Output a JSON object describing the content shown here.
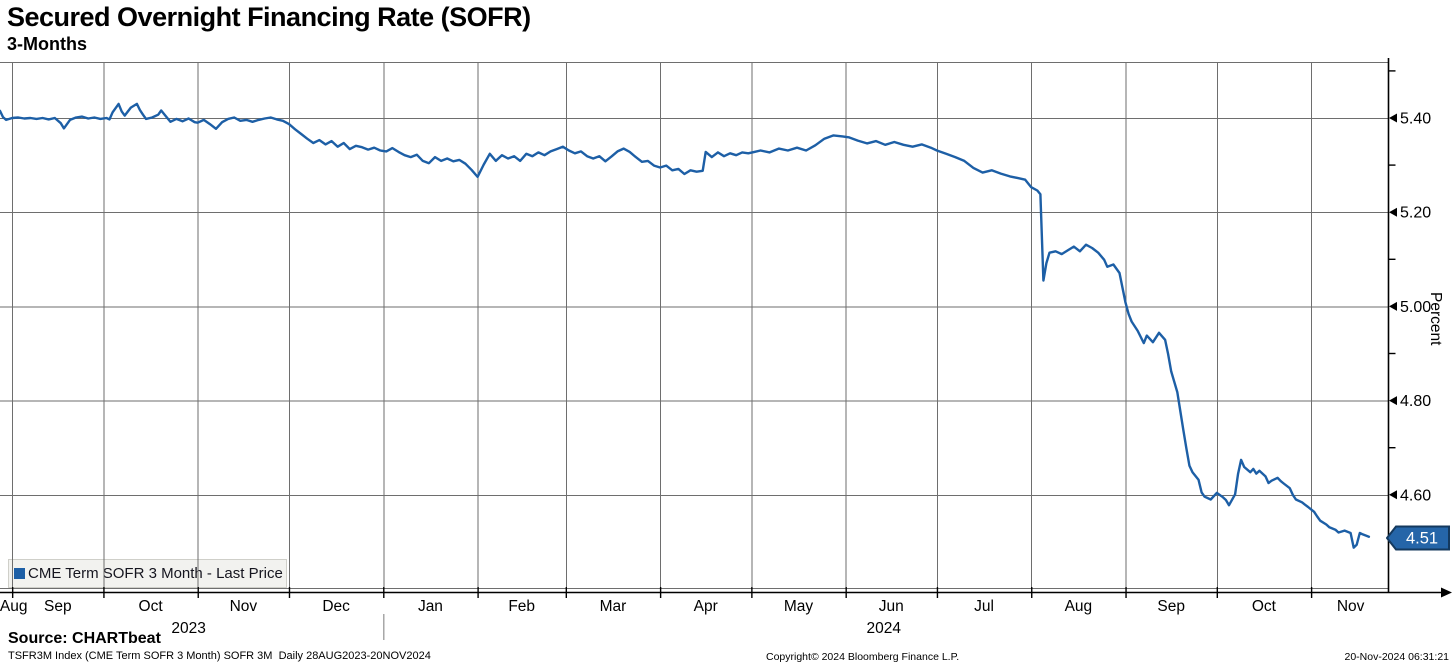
{
  "header": {
    "title": "Secured Overnight Financing Rate (SOFR)",
    "subtitle": "3-Months"
  },
  "legend": {
    "label": "CME Term SOFR 3 Month - Last Price"
  },
  "footer": {
    "source": "Source: CHARTbeat",
    "ticker_line": "TSFR3M Index (CME Term SOFR 3 Month) SOFR 3M  Daily 28AUG2023-20NOV2024",
    "copyright": "Copyright© 2024 Bloomberg Finance L.P.",
    "timestamp": "20-Nov-2024 06:31:21"
  },
  "colors": {
    "line": "#1d5fa6",
    "tag_fill": "#2565a8",
    "tag_border": "#14395e",
    "grid": "#6e6e6e",
    "axis": "#000000",
    "legend_bg": "#f2f2ef"
  },
  "chart_data": {
    "type": "line",
    "title": "Secured Overnight Financing Rate (SOFR) 3-Months",
    "xlabel": "",
    "ylabel": "Percent",
    "x_axis": {
      "start_date": "28AUG2023",
      "end_date": "20NOV2024",
      "month_boundaries_t": [
        4,
        34,
        65,
        95,
        126,
        157,
        186,
        217,
        247,
        278,
        308,
        339,
        370,
        400,
        431
      ],
      "months": [
        {
          "label": "Aug",
          "t_center": 4.5
        },
        {
          "label": "Sep",
          "t_center": 19
        },
        {
          "label": "Oct",
          "t_center": 49.5
        },
        {
          "label": "Nov",
          "t_center": 80
        },
        {
          "label": "Dec",
          "t_center": 110.5
        },
        {
          "label": "Jan",
          "t_center": 141.5
        },
        {
          "label": "Feb",
          "t_center": 171.5
        },
        {
          "label": "Mar",
          "t_center": 201.5
        },
        {
          "label": "Apr",
          "t_center": 232
        },
        {
          "label": "May",
          "t_center": 262.5
        },
        {
          "label": "Jun",
          "t_center": 293
        },
        {
          "label": "Jul",
          "t_center": 323.5
        },
        {
          "label": "Aug",
          "t_center": 354.5
        },
        {
          "label": "Sep",
          "t_center": 385
        },
        {
          "label": "Oct",
          "t_center": 415.5
        },
        {
          "label": "Nov",
          "t_center": 444
        }
      ],
      "years": [
        {
          "label": "2023",
          "t_center": 62
        },
        {
          "label": "2024",
          "t_center": 290.5
        }
      ],
      "year_divider_t": 126
    },
    "y_axis": {
      "label": "Percent",
      "major_ticks": [
        5.4,
        5.2,
        5.0,
        4.8,
        4.6
      ],
      "minor_ticks": [
        5.5,
        5.3,
        5.1,
        4.9,
        4.7,
        4.5
      ],
      "ylim": [
        4.4,
        5.52
      ],
      "grid": true,
      "side": "right"
    },
    "last_price": {
      "label": "4.51",
      "numeric": 4.51
    },
    "series": [
      {
        "name": "CME Term SOFR 3 Month - Last Price",
        "color": "#1d5fa6",
        "points": [
          [
            0,
            5.415
          ],
          [
            1,
            5.402
          ],
          [
            2,
            5.396
          ],
          [
            4,
            5.4
          ],
          [
            6,
            5.401
          ],
          [
            8,
            5.399
          ],
          [
            10,
            5.4
          ],
          [
            12,
            5.398
          ],
          [
            14,
            5.4
          ],
          [
            16,
            5.397
          ],
          [
            18,
            5.4
          ],
          [
            20,
            5.389
          ],
          [
            21,
            5.378
          ],
          [
            23,
            5.396
          ],
          [
            25,
            5.401
          ],
          [
            27,
            5.403
          ],
          [
            29,
            5.399
          ],
          [
            31,
            5.401
          ],
          [
            33,
            5.398
          ],
          [
            35,
            5.4
          ],
          [
            36,
            5.397
          ],
          [
            37,
            5.412
          ],
          [
            39,
            5.43
          ],
          [
            40,
            5.414
          ],
          [
            41,
            5.405
          ],
          [
            43,
            5.422
          ],
          [
            45,
            5.43
          ],
          [
            46,
            5.417
          ],
          [
            47,
            5.407
          ],
          [
            48,
            5.398
          ],
          [
            50,
            5.401
          ],
          [
            52,
            5.407
          ],
          [
            53,
            5.416
          ],
          [
            55,
            5.4
          ],
          [
            56,
            5.392
          ],
          [
            58,
            5.398
          ],
          [
            60,
            5.393
          ],
          [
            62,
            5.399
          ],
          [
            64,
            5.391
          ],
          [
            65,
            5.39
          ],
          [
            67,
            5.396
          ],
          [
            69,
            5.387
          ],
          [
            71,
            5.377
          ],
          [
            73,
            5.391
          ],
          [
            75,
            5.398
          ],
          [
            77,
            5.401
          ],
          [
            79,
            5.394
          ],
          [
            81,
            5.396
          ],
          [
            83,
            5.392
          ],
          [
            85,
            5.396
          ],
          [
            87,
            5.399
          ],
          [
            89,
            5.401
          ],
          [
            91,
            5.397
          ],
          [
            93,
            5.394
          ],
          [
            95,
            5.387
          ],
          [
            97,
            5.376
          ],
          [
            99,
            5.366
          ],
          [
            101,
            5.356
          ],
          [
            103,
            5.347
          ],
          [
            105,
            5.353
          ],
          [
            107,
            5.344
          ],
          [
            109,
            5.351
          ],
          [
            111,
            5.339
          ],
          [
            113,
            5.347
          ],
          [
            115,
            5.334
          ],
          [
            117,
            5.341
          ],
          [
            119,
            5.338
          ],
          [
            121,
            5.333
          ],
          [
            123,
            5.337
          ],
          [
            125,
            5.331
          ],
          [
            127,
            5.329
          ],
          [
            129,
            5.336
          ],
          [
            131,
            5.328
          ],
          [
            133,
            5.321
          ],
          [
            135,
            5.317
          ],
          [
            137,
            5.322
          ],
          [
            139,
            5.309
          ],
          [
            141,
            5.304
          ],
          [
            143,
            5.317
          ],
          [
            145,
            5.309
          ],
          [
            147,
            5.314
          ],
          [
            149,
            5.308
          ],
          [
            151,
            5.311
          ],
          [
            153,
            5.303
          ],
          [
            155,
            5.29
          ],
          [
            157,
            5.275
          ],
          [
            159,
            5.301
          ],
          [
            161,
            5.324
          ],
          [
            163,
            5.309
          ],
          [
            165,
            5.321
          ],
          [
            167,
            5.314
          ],
          [
            169,
            5.319
          ],
          [
            171,
            5.309
          ],
          [
            173,
            5.324
          ],
          [
            175,
            5.319
          ],
          [
            177,
            5.327
          ],
          [
            179,
            5.321
          ],
          [
            181,
            5.329
          ],
          [
            183,
            5.334
          ],
          [
            185,
            5.339
          ],
          [
            187,
            5.331
          ],
          [
            189,
            5.325
          ],
          [
            191,
            5.329
          ],
          [
            193,
            5.319
          ],
          [
            195,
            5.314
          ],
          [
            197,
            5.319
          ],
          [
            199,
            5.308
          ],
          [
            201,
            5.318
          ],
          [
            203,
            5.329
          ],
          [
            205,
            5.335
          ],
          [
            207,
            5.328
          ],
          [
            209,
            5.317
          ],
          [
            211,
            5.307
          ],
          [
            213,
            5.309
          ],
          [
            215,
            5.299
          ],
          [
            217,
            5.295
          ],
          [
            219,
            5.299
          ],
          [
            221,
            5.289
          ],
          [
            223,
            5.292
          ],
          [
            225,
            5.281
          ],
          [
            227,
            5.289
          ],
          [
            229,
            5.286
          ],
          [
            231,
            5.288
          ],
          [
            232,
            5.328
          ],
          [
            234,
            5.317
          ],
          [
            236,
            5.327
          ],
          [
            238,
            5.319
          ],
          [
            240,
            5.325
          ],
          [
            242,
            5.321
          ],
          [
            244,
            5.327
          ],
          [
            246,
            5.325
          ],
          [
            248,
            5.328
          ],
          [
            250,
            5.331
          ],
          [
            253,
            5.327
          ],
          [
            256,
            5.335
          ],
          [
            259,
            5.331
          ],
          [
            262,
            5.337
          ],
          [
            265,
            5.331
          ],
          [
            268,
            5.342
          ],
          [
            271,
            5.356
          ],
          [
            274,
            5.363
          ],
          [
            277,
            5.361
          ],
          [
            279,
            5.359
          ],
          [
            282,
            5.352
          ],
          [
            285,
            5.346
          ],
          [
            288,
            5.351
          ],
          [
            291,
            5.343
          ],
          [
            294,
            5.349
          ],
          [
            297,
            5.343
          ],
          [
            300,
            5.339
          ],
          [
            303,
            5.344
          ],
          [
            306,
            5.337
          ],
          [
            308,
            5.331
          ],
          [
            311,
            5.324
          ],
          [
            314,
            5.317
          ],
          [
            317,
            5.309
          ],
          [
            320,
            5.294
          ],
          [
            323,
            5.284
          ],
          [
            326,
            5.289
          ],
          [
            329,
            5.282
          ],
          [
            332,
            5.276
          ],
          [
            335,
            5.272
          ],
          [
            337,
            5.269
          ],
          [
            339,
            5.253
          ],
          [
            341,
            5.246
          ],
          [
            342,
            5.238
          ],
          [
            343,
            5.055
          ],
          [
            344,
            5.092
          ],
          [
            345,
            5.114
          ],
          [
            347,
            5.117
          ],
          [
            349,
            5.111
          ],
          [
            351,
            5.119
          ],
          [
            353,
            5.127
          ],
          [
            355,
            5.117
          ],
          [
            357,
            5.131
          ],
          [
            359,
            5.124
          ],
          [
            361,
            5.114
          ],
          [
            363,
            5.099
          ],
          [
            364,
            5.084
          ],
          [
            366,
            5.089
          ],
          [
            368,
            5.071
          ],
          [
            370,
            5.008
          ],
          [
            371,
            4.984
          ],
          [
            372,
            4.968
          ],
          [
            374,
            4.948
          ],
          [
            376,
            4.922
          ],
          [
            377,
            4.938
          ],
          [
            379,
            4.924
          ],
          [
            381,
            4.944
          ],
          [
            383,
            4.929
          ],
          [
            384,
            4.899
          ],
          [
            385,
            4.862
          ],
          [
            387,
            4.818
          ],
          [
            388,
            4.778
          ],
          [
            389,
            4.738
          ],
          [
            390,
            4.698
          ],
          [
            391,
            4.662
          ],
          [
            392,
            4.648
          ],
          [
            393,
            4.64
          ],
          [
            394,
            4.632
          ],
          [
            395,
            4.605
          ],
          [
            396,
            4.596
          ],
          [
            398,
            4.59
          ],
          [
            400,
            4.604
          ],
          [
            402,
            4.595
          ],
          [
            403,
            4.589
          ],
          [
            404,
            4.578
          ],
          [
            406,
            4.601
          ],
          [
            407,
            4.645
          ],
          [
            408,
            4.674
          ],
          [
            409,
            4.659
          ],
          [
            411,
            4.648
          ],
          [
            412,
            4.655
          ],
          [
            413,
            4.645
          ],
          [
            414,
            4.651
          ],
          [
            416,
            4.639
          ],
          [
            417,
            4.625
          ],
          [
            418,
            4.63
          ],
          [
            420,
            4.636
          ],
          [
            421,
            4.629
          ],
          [
            422,
            4.624
          ],
          [
            424,
            4.614
          ],
          [
            425,
            4.6
          ],
          [
            426,
            4.59
          ],
          [
            428,
            4.584
          ],
          [
            429,
            4.579
          ],
          [
            430,
            4.574
          ],
          [
            432,
            4.564
          ],
          [
            433,
            4.554
          ],
          [
            434,
            4.545
          ],
          [
            436,
            4.537
          ],
          [
            437,
            4.531
          ],
          [
            439,
            4.526
          ],
          [
            440,
            4.52
          ],
          [
            442,
            4.524
          ],
          [
            444,
            4.519
          ],
          [
            445,
            4.488
          ],
          [
            446,
            4.494
          ],
          [
            447,
            4.519
          ],
          [
            448,
            4.516
          ],
          [
            450,
            4.511
          ]
        ]
      }
    ]
  }
}
